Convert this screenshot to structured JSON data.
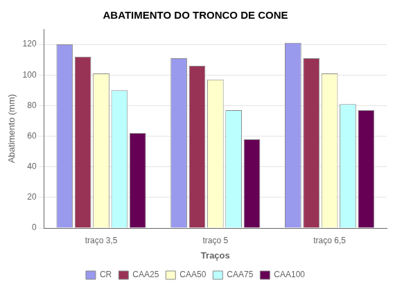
{
  "chart_data": {
    "type": "bar",
    "title": "ABATIMENTO DO TRONCO DE CONE",
    "xlabel": "Traços",
    "ylabel": "Abatimento (mm)",
    "categories": [
      "traço 3,5",
      "traço 5",
      "traço 6,5"
    ],
    "series": [
      {
        "name": "CR",
        "color": "#9999EE",
        "values": [
          120,
          111,
          121
        ]
      },
      {
        "name": "CAA25",
        "color": "#993355",
        "values": [
          112,
          106,
          111
        ]
      },
      {
        "name": "CAA50",
        "color": "#FFFFCC",
        "values": [
          101,
          97,
          101
        ]
      },
      {
        "name": "CAA75",
        "color": "#BBFFFF",
        "values": [
          90,
          77,
          81
        ]
      },
      {
        "name": "CAA100",
        "color": "#660055",
        "values": [
          62,
          58,
          77
        ]
      }
    ],
    "ylim": [
      0,
      130
    ],
    "yticks": [
      0,
      20,
      40,
      60,
      80,
      100,
      120
    ],
    "grid": true,
    "legend": "bottom"
  }
}
